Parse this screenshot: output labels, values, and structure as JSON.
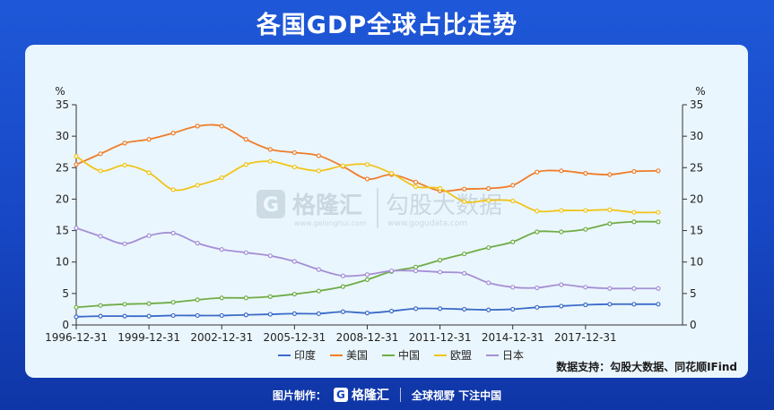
{
  "header": {
    "title": "各国GDP全球占比走势"
  },
  "source": "数据支持：勾股大数据、同花顺IFind",
  "watermark": {
    "brand1": "格隆汇",
    "brand1_url": "www.gelonghui.com",
    "brand2": "勾股大数据",
    "brand2_url": "www.gogudata.com"
  },
  "footer": {
    "made_by": "图片制作：",
    "logo_text": "格隆汇",
    "slogan": "全球视野 下注中国"
  },
  "colors": {
    "印度": "#3a6bc9",
    "美国": "#ee7d2a",
    "中国": "#6fac46",
    "欧盟": "#f0c419",
    "日本": "#a58fd6"
  },
  "chart_data": {
    "type": "line",
    "ylabel_left": "%",
    "ylabel_right": "%",
    "ylim": [
      0,
      35
    ],
    "yticks": [
      0,
      5,
      10,
      15,
      20,
      25,
      30,
      35
    ],
    "xlim": [
      1996,
      2021
    ],
    "xtick_labels": [
      "1996-12-31",
      "1999-12-31",
      "2002-12-31",
      "2005-12-31",
      "2008-12-31",
      "2011-12-31",
      "2014-12-31",
      "2017-12-31"
    ],
    "xtick_years": [
      1996,
      1999,
      2002,
      2005,
      2008,
      2011,
      2014,
      2017
    ],
    "x": [
      1996,
      1997,
      1998,
      1999,
      2000,
      2001,
      2002,
      2003,
      2004,
      2005,
      2006,
      2007,
      2008,
      2009,
      2010,
      2011,
      2012,
      2013,
      2014,
      2015,
      2016,
      2017,
      2018,
      2019,
      2020
    ],
    "legend_position": "bottom",
    "series": [
      {
        "name": "印度",
        "values": [
          1.3,
          1.4,
          1.4,
          1.4,
          1.5,
          1.5,
          1.5,
          1.6,
          1.7,
          1.8,
          1.8,
          2.1,
          1.9,
          2.2,
          2.6,
          2.6,
          2.5,
          2.4,
          2.5,
          2.8,
          3.0,
          3.2,
          3.3,
          3.3,
          3.3
        ]
      },
      {
        "name": "美国",
        "values": [
          25.5,
          27.2,
          28.9,
          29.5,
          30.5,
          31.6,
          31.6,
          29.5,
          27.9,
          27.4,
          26.9,
          25.2,
          23.2,
          23.9,
          22.7,
          21.3,
          21.6,
          21.7,
          22.2,
          24.3,
          24.5,
          24.1,
          23.9,
          24.4,
          24.5
        ]
      },
      {
        "name": "中国",
        "values": [
          2.8,
          3.1,
          3.3,
          3.4,
          3.6,
          4.0,
          4.3,
          4.3,
          4.5,
          4.9,
          5.4,
          6.1,
          7.2,
          8.5,
          9.2,
          10.3,
          11.3,
          12.3,
          13.2,
          14.8,
          14.8,
          15.2,
          16.1,
          16.4,
          16.4
        ]
      },
      {
        "name": "欧盟",
        "values": [
          26.8,
          24.5,
          25.4,
          24.2,
          21.5,
          22.2,
          23.4,
          25.5,
          26.0,
          25.1,
          24.5,
          25.3,
          25.5,
          24.1,
          22.0,
          21.7,
          19.6,
          19.8,
          19.7,
          18.1,
          18.2,
          18.2,
          18.3,
          17.9,
          17.9
        ]
      },
      {
        "name": "日本",
        "values": [
          15.4,
          14.1,
          12.9,
          14.2,
          14.6,
          13.0,
          12.0,
          11.5,
          11.0,
          10.1,
          8.8,
          7.8,
          8.0,
          8.6,
          8.6,
          8.4,
          8.2,
          6.7,
          6.0,
          5.9,
          6.4,
          6.0,
          5.8,
          5.8,
          5.8
        ]
      }
    ]
  }
}
